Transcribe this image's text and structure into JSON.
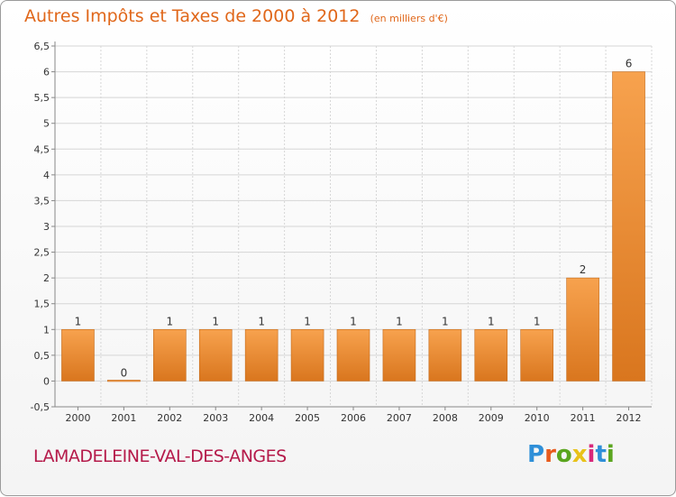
{
  "header": {
    "title": "Autres Impôts et Taxes de 2000 à 2012",
    "unit": "(en milliers d'€)"
  },
  "footer": {
    "commune": "LAMADELEINE-VAL-DES-ANGES",
    "brand": "Proxiti",
    "brand_letter_colors": [
      "#2f8fd8",
      "#e85a1c",
      "#5aa51e",
      "#e8c21a",
      "#d8287a",
      "#2f8fd8",
      "#5aa51e"
    ]
  },
  "colors": {
    "bar_top": "#f7a24e",
    "bar_bottom": "#d9761e",
    "bar_edge": "#c46a1a",
    "title": "#e0671a",
    "commune": "#b51a4a",
    "grid": "#d6d6d6"
  },
  "chart_data": {
    "type": "bar",
    "title": "Autres Impôts et Taxes de 2000 à 2012",
    "subtitle": "(en milliers d'€)",
    "xlabel": "",
    "ylabel": "",
    "categories": [
      "2000",
      "2001",
      "2002",
      "2003",
      "2004",
      "2005",
      "2006",
      "2007",
      "2008",
      "2009",
      "2010",
      "2011",
      "2012"
    ],
    "values": [
      1,
      0,
      1,
      1,
      1,
      1,
      1,
      1,
      1,
      1,
      1,
      2,
      6
    ],
    "data_labels": [
      "1",
      "0",
      "1",
      "1",
      "1",
      "1",
      "1",
      "1",
      "1",
      "1",
      "1",
      "2",
      "6"
    ],
    "ylim": [
      -0.5,
      6.5
    ],
    "yticks": [
      "-0,5",
      "0",
      "0,5",
      "1",
      "1,5",
      "2",
      "2,5",
      "3",
      "3,5",
      "4",
      "4,5",
      "5",
      "5,5",
      "6",
      "6,5"
    ],
    "ytick_values": [
      -0.5,
      0,
      0.5,
      1,
      1.5,
      2,
      2.5,
      3,
      3.5,
      4,
      4.5,
      5,
      5.5,
      6,
      6.5
    ],
    "grid": true,
    "legend": "none"
  }
}
